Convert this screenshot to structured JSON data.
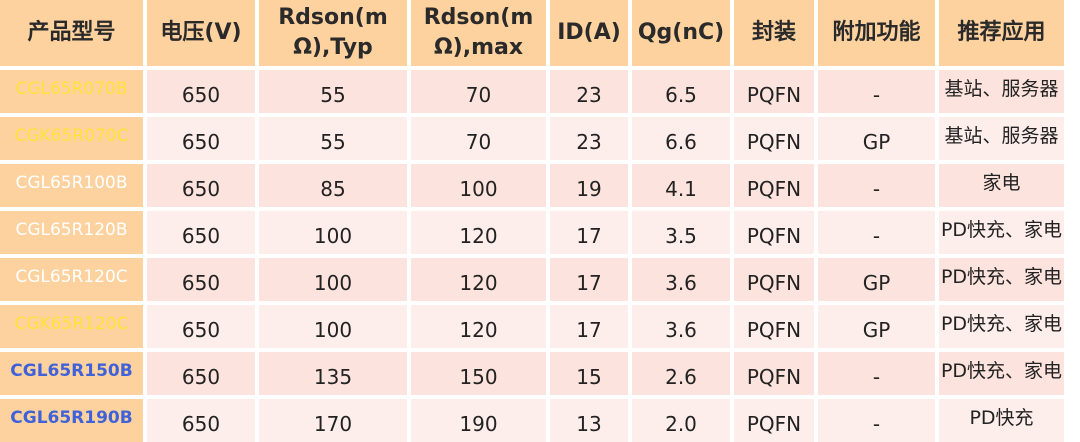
{
  "table": {
    "headers": [
      "产品型号",
      "电压(V)",
      "Rdson(m\nΩ),Typ",
      "Rdson(m\nΩ),max",
      "ID(A)",
      "Qg(nC)",
      "封装",
      "附加功能",
      "推荐应用"
    ],
    "rows": [
      {
        "model": "CGL65R070B",
        "voltage": "650",
        "rdson_typ": "55",
        "rdson_max": "70",
        "id": "23",
        "qg": "6.5",
        "package": "PQFN",
        "extra": "-",
        "application": "基站、服务器"
      },
      {
        "model": "CGK65R070C",
        "voltage": "650",
        "rdson_typ": "55",
        "rdson_max": "70",
        "id": "23",
        "qg": "6.6",
        "package": "PQFN",
        "extra": "GP",
        "application": "基站、服务器"
      },
      {
        "model": "CGL65R100B",
        "voltage": "650",
        "rdson_typ": "85",
        "rdson_max": "100",
        "id": "19",
        "qg": "4.1",
        "package": "PQFN",
        "extra": "-",
        "application": "家电"
      },
      {
        "model": "CGL65R120B",
        "voltage": "650",
        "rdson_typ": "100",
        "rdson_max": "120",
        "id": "17",
        "qg": "3.5",
        "package": "PQFN",
        "extra": "-",
        "application": "PD快充、家电"
      },
      {
        "model": "CGL65R120C",
        "voltage": "650",
        "rdson_typ": "100",
        "rdson_max": "120",
        "id": "17",
        "qg": "3.6",
        "package": "PQFN",
        "extra": "GP",
        "application": "PD快充、家电"
      },
      {
        "model": "CGK65R120C",
        "voltage": "650",
        "rdson_typ": "100",
        "rdson_max": "120",
        "id": "17",
        "qg": "3.6",
        "package": "PQFN",
        "extra": "GP",
        "application": "PD快充、家电"
      },
      {
        "model": "CGL65R150B",
        "voltage": "650",
        "rdson_typ": "135",
        "rdson_max": "150",
        "id": "15",
        "qg": "2.6",
        "package": "PQFN",
        "extra": "-",
        "application": "PD快充、家电"
      },
      {
        "model": "CGL65R190B",
        "voltage": "650",
        "rdson_typ": "170",
        "rdson_max": "190",
        "id": "13",
        "qg": "2.0",
        "package": "PQFN",
        "extra": "-",
        "application": "PD快充"
      }
    ]
  },
  "colors": {
    "header_bg": "#fdd29f",
    "row_odd_bg": "#fde3dd",
    "row_even_bg": "#fdeeec",
    "model_text_yellow": "#ffe13a",
    "model_text_white": "#ffffff",
    "model_text_blue": "#3f62d8",
    "model_text_colors": [
      "#ffe13a",
      "#ffe13a",
      "#ffffff",
      "#ffffff",
      "#ffffff",
      "#ffe13a",
      "#3f62d8",
      "#3f62d8"
    ]
  }
}
